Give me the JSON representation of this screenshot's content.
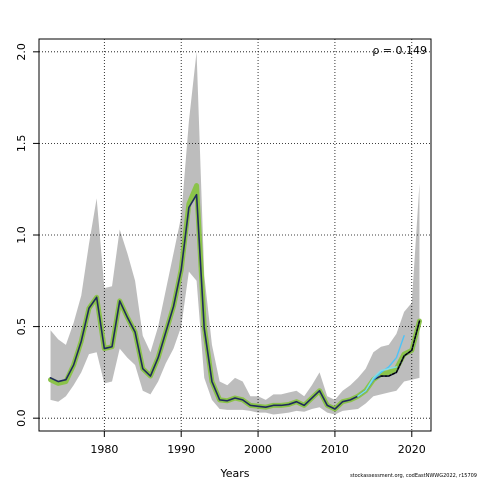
{
  "chart_data": {
    "type": "line",
    "xlabel": "Years",
    "ylabel": "",
    "xlim": [
      1971.5,
      2022.5
    ],
    "ylim": [
      -0.07,
      2.07
    ],
    "x_ticks": [
      1980,
      1990,
      2000,
      2010,
      2020
    ],
    "y_ticks": [
      0.0,
      0.5,
      1.0,
      1.5,
      2.0
    ],
    "x_tick_labels": [
      "1980",
      "1990",
      "2000",
      "2010",
      "2020"
    ],
    "y_tick_labels": [
      "0.0",
      "0.5",
      "1.0",
      "1.5",
      "2.0"
    ],
    "grid": true,
    "annotation": "ρ = 0.149",
    "credit": "stockassessment.org, codEastNWWG2022, r15709",
    "band": {
      "color": "#bdbdbd",
      "x": [
        1973,
        1974,
        1975,
        1976,
        1977,
        1978,
        1979,
        1980,
        1981,
        1982,
        1983,
        1984,
        1985,
        1986,
        1987,
        1988,
        1989,
        1990,
        1991,
        1992,
        1993,
        1994,
        1995,
        1996,
        1997,
        1998,
        1999,
        2000,
        2001,
        2002,
        2003,
        2004,
        2005,
        2006,
        2007,
        2008,
        2009,
        2010,
        2011,
        2012,
        2013,
        2014,
        2015,
        2016,
        2017,
        2018,
        2019,
        2020,
        2021
      ],
      "lower": [
        0.1,
        0.09,
        0.12,
        0.18,
        0.25,
        0.35,
        0.36,
        0.19,
        0.2,
        0.38,
        0.33,
        0.29,
        0.15,
        0.13,
        0.2,
        0.3,
        0.38,
        0.5,
        0.8,
        0.75,
        0.22,
        0.1,
        0.05,
        0.045,
        0.045,
        0.045,
        0.04,
        0.03,
        0.03,
        0.02,
        0.025,
        0.03,
        0.04,
        0.035,
        0.05,
        0.06,
        0.03,
        0.02,
        0.04,
        0.045,
        0.05,
        0.08,
        0.12,
        0.13,
        0.14,
        0.15,
        0.2,
        0.21,
        0.22
      ],
      "upper": [
        0.48,
        0.43,
        0.4,
        0.52,
        0.67,
        0.95,
        1.2,
        0.71,
        0.72,
        1.03,
        0.9,
        0.75,
        0.45,
        0.36,
        0.5,
        0.7,
        0.9,
        1.1,
        1.62,
        2.0,
        0.78,
        0.4,
        0.2,
        0.18,
        0.22,
        0.2,
        0.12,
        0.12,
        0.1,
        0.13,
        0.13,
        0.14,
        0.15,
        0.12,
        0.18,
        0.25,
        0.12,
        0.1,
        0.15,
        0.18,
        0.22,
        0.27,
        0.36,
        0.39,
        0.4,
        0.46,
        0.58,
        0.63,
        1.28
      ]
    },
    "series": [
      {
        "color": "#8bc34a",
        "width": 5,
        "x": [
          1973,
          1974,
          1975,
          1976,
          1977,
          1978,
          1979,
          1980,
          1981,
          1982,
          1983,
          1984,
          1985,
          1986,
          1987,
          1988,
          1989,
          1990,
          1991,
          1992,
          1993,
          1994,
          1995,
          1996,
          1997,
          1998,
          1999,
          2000,
          2001,
          2002,
          2003,
          2004,
          2005,
          2006,
          2007,
          2008,
          2009,
          2010,
          2011,
          2012,
          2013,
          2014,
          2015,
          2016,
          2017,
          2018,
          2019,
          2020,
          2021
        ],
        "values": [
          0.21,
          0.19,
          0.2,
          0.29,
          0.42,
          0.6,
          0.66,
          0.38,
          0.39,
          0.64,
          0.55,
          0.47,
          0.27,
          0.23,
          0.33,
          0.47,
          0.61,
          0.81,
          1.17,
          1.27,
          0.5,
          0.2,
          0.1,
          0.095,
          0.11,
          0.1,
          0.07,
          0.065,
          0.06,
          0.07,
          0.07,
          0.075,
          0.09,
          0.07,
          0.11,
          0.15,
          0.07,
          0.05,
          0.09,
          0.1,
          0.12,
          0.15,
          0.21,
          0.24,
          0.25,
          0.27,
          0.35,
          0.37,
          0.53
        ]
      },
      {
        "color": "#1f2a5c",
        "width": 1.6,
        "x": [
          1973,
          1974,
          1975,
          1976,
          1977,
          1978,
          1979,
          1980,
          1981,
          1982,
          1983,
          1984,
          1985,
          1986,
          1987,
          1988,
          1989,
          1990,
          1991,
          1992,
          1993,
          1994,
          1995,
          1996,
          1997,
          1998,
          1999,
          2000,
          2001,
          2002,
          2003,
          2004,
          2005,
          2006,
          2007,
          2008,
          2009,
          2010,
          2011,
          2012,
          2013,
          2014,
          2015,
          2016,
          2017,
          2018,
          2019,
          2020,
          2021
        ],
        "values": [
          0.22,
          0.2,
          0.21,
          0.29,
          0.42,
          0.6,
          0.66,
          0.38,
          0.39,
          0.64,
          0.55,
          0.47,
          0.27,
          0.23,
          0.33,
          0.47,
          0.61,
          0.81,
          1.15,
          1.22,
          0.49,
          0.2,
          0.1,
          0.095,
          0.11,
          0.1,
          0.07,
          0.065,
          0.06,
          0.07,
          0.07,
          0.075,
          0.09,
          0.07,
          0.11,
          0.15,
          0.07,
          0.05,
          0.09,
          0.1,
          0.12,
          0.15,
          0.21,
          0.23,
          0.23,
          0.25,
          0.34,
          0.37,
          0.53
        ]
      },
      {
        "color": "#4fc3f7",
        "width": 1.4,
        "x": [
          2013,
          2014,
          2015,
          2016,
          2017,
          2018,
          2019
        ],
        "values": [
          0.12,
          0.15,
          0.21,
          0.25,
          0.28,
          0.33,
          0.45
        ]
      },
      {
        "color": "#80deea",
        "width": 1.4,
        "x": [
          2013,
          2014,
          2015,
          2016,
          2017,
          2018
        ],
        "values": [
          0.12,
          0.15,
          0.22,
          0.26,
          0.27,
          0.28
        ]
      },
      {
        "color": "#000000",
        "width": 1.4,
        "dashed": true,
        "x": [
          2016,
          2017,
          2018,
          2019,
          2020,
          2021
        ],
        "values": [
          0.23,
          0.23,
          0.25,
          0.34,
          0.37,
          0.53
        ]
      }
    ]
  }
}
